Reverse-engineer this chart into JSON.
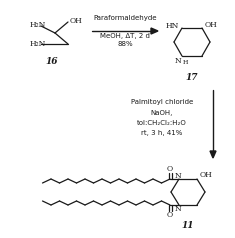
{
  "bg_color": "#ffffff",
  "text_color": "#1a1a1a",
  "fig_width": 2.35,
  "fig_height": 2.38,
  "dpi": 100,
  "compound16_label": "16",
  "compound17_label": "17",
  "compound11_label": "11",
  "reagent1_line1": "Paraformaldehyde",
  "reagent1_line2": "MeOH, ΔT, 2 d",
  "reagent1_line3": "88%",
  "reagent2_line1": "Palmitoyl chloride",
  "reagent2_line2": "NaOH,",
  "reagent2_line3": "tol:CH₂Cl₂:H₂O",
  "reagent2_line4": "rt, 3 h, 41%"
}
